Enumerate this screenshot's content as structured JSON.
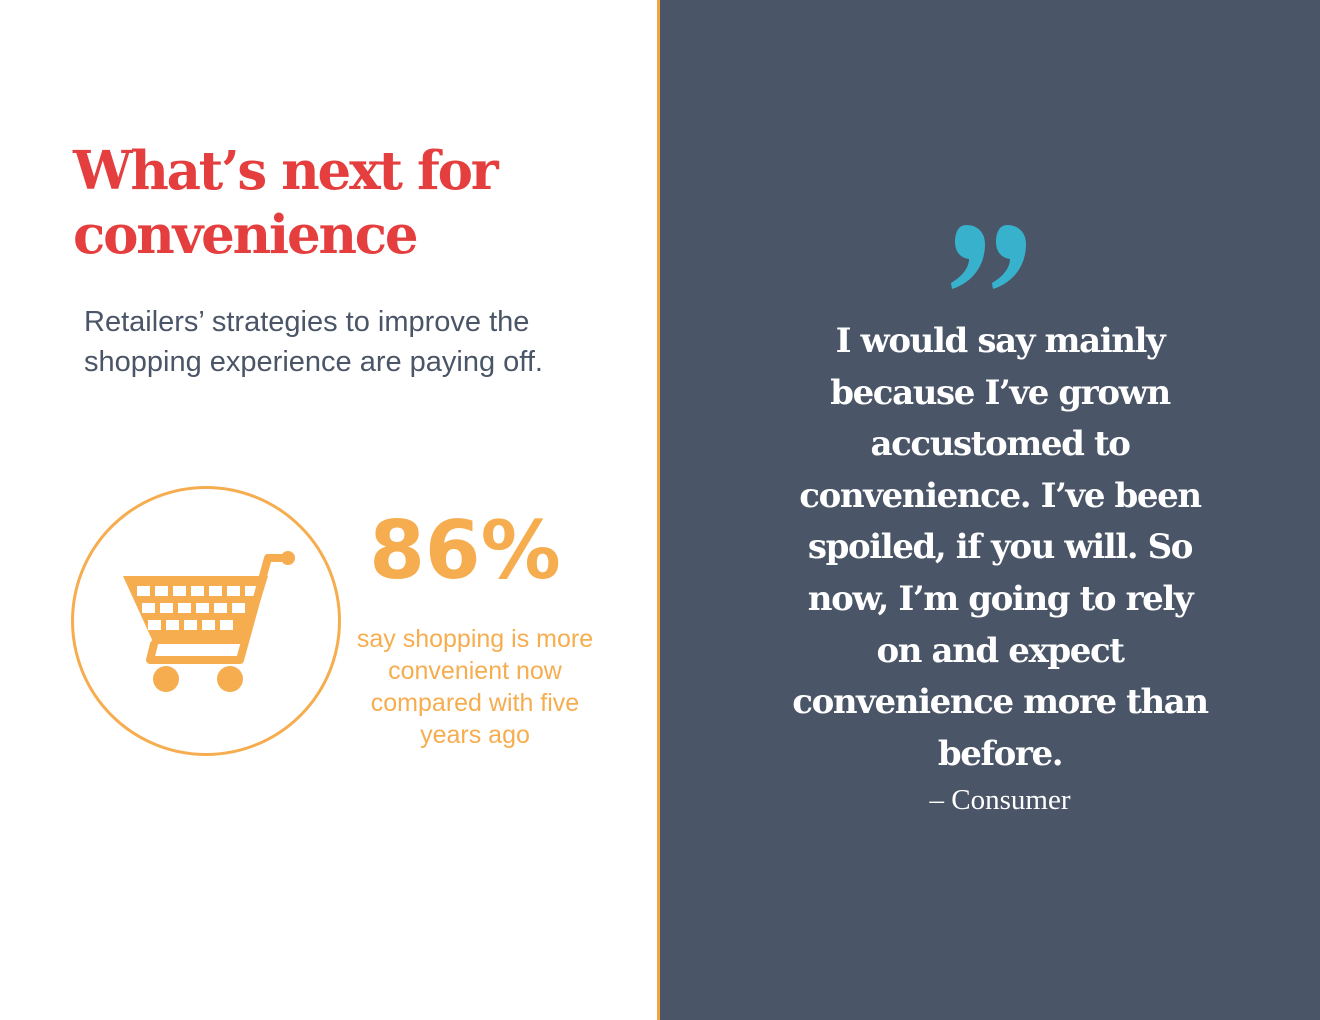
{
  "colors": {
    "title_red": "#e53e3e",
    "accent_orange": "#f6ad4f",
    "panel_slate": "#4a5568",
    "quote_teal": "#38b2cc",
    "divider_orange": "#f0a640"
  },
  "left": {
    "title": "What’s next for convenience",
    "subtitle": "Retailers’ strategies to improve the shopping experience are paying off.",
    "stat": {
      "icon": "shopping-cart-icon",
      "value": "86%",
      "caption": "say shopping is more convenient now compared with five years ago"
    }
  },
  "right": {
    "quote_icon": "quote-mark-icon",
    "quote": "I would say mainly because I’ve grown accustomed to convenience. I’ve been spoiled, if you will. So now, I’m going to rely on and expect convenience more than before.",
    "attribution": "– Consumer"
  }
}
